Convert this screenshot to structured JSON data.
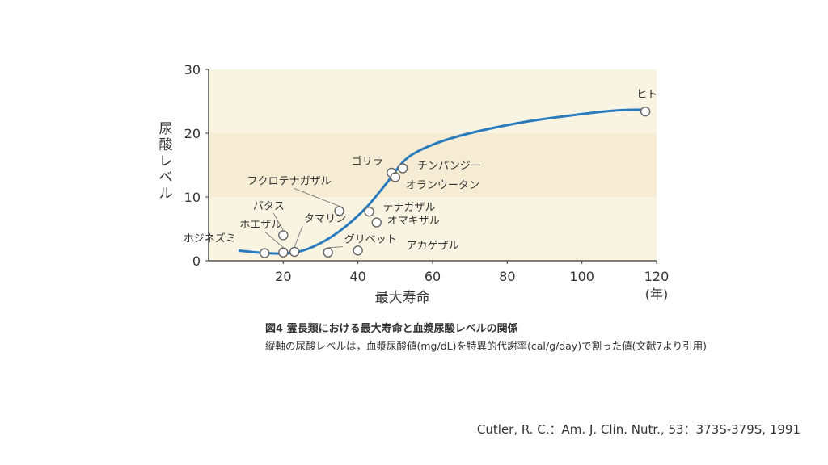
{
  "chart_data": {
    "type": "scatter",
    "ylabel": "尿酸レベル",
    "xlabel": "最大寿命",
    "x_unit": "(年)",
    "xlim": [
      0,
      120
    ],
    "ylim": [
      0,
      30
    ],
    "x_ticks": [
      "20",
      "40",
      "60",
      "80",
      "100",
      "120"
    ],
    "y_ticks": [
      "0",
      "10",
      "20",
      "30"
    ],
    "background_bands": [
      "#f9f3e2",
      "#f6ecd4"
    ],
    "line_color": "#2a7bbd",
    "points": [
      {
        "label": "ホジネズミ",
        "x": 15,
        "y": 1.2
      },
      {
        "label": "ホエザル",
        "x": 20,
        "y": 1.3
      },
      {
        "label": "パタス",
        "x": 20,
        "y": 4.0
      },
      {
        "label": "タマリン",
        "x": 23,
        "y": 1.4
      },
      {
        "label": "フクロテナガザル",
        "x": 35,
        "y": 7.8
      },
      {
        "label": "グリベット",
        "x": 32,
        "y": 1.3
      },
      {
        "label": "アカゲザル",
        "x": 40,
        "y": 1.6
      },
      {
        "label": "テナガザル",
        "x": 43,
        "y": 7.7
      },
      {
        "label": "オマキザル",
        "x": 45,
        "y": 6.0
      },
      {
        "label": "ゴリラ",
        "x": 49,
        "y": 13.8
      },
      {
        "label": "オランウータン",
        "x": 50,
        "y": 13.1
      },
      {
        "label": "チンパンジー",
        "x": 52,
        "y": 14.5
      },
      {
        "label": "ヒト",
        "x": 117,
        "y": 23.4
      }
    ],
    "curve": [
      {
        "x": 8,
        "y": 1.6
      },
      {
        "x": 15,
        "y": 1.2
      },
      {
        "x": 22,
        "y": 1.2
      },
      {
        "x": 28,
        "y": 2.2
      },
      {
        "x": 35,
        "y": 4.6
      },
      {
        "x": 42,
        "y": 8.2
      },
      {
        "x": 48,
        "y": 12.4
      },
      {
        "x": 53,
        "y": 16.0
      },
      {
        "x": 60,
        "y": 18.2
      },
      {
        "x": 70,
        "y": 20.0
      },
      {
        "x": 85,
        "y": 21.8
      },
      {
        "x": 100,
        "y": 23.0
      },
      {
        "x": 110,
        "y": 23.6
      },
      {
        "x": 117,
        "y": 23.7
      }
    ]
  },
  "caption": {
    "title": "図4 霊長類における最大寿命と血漿尿酸レベルの関係",
    "note": "縦軸の尿酸レベルは，血漿尿酸値(mg/dL)を特異的代謝率(cal/g/day)で割った値(文献7より引用)"
  },
  "citation": "Cutler, R. C.：Am. J. Clin. Nutr., 53：373S-379S, 1991"
}
